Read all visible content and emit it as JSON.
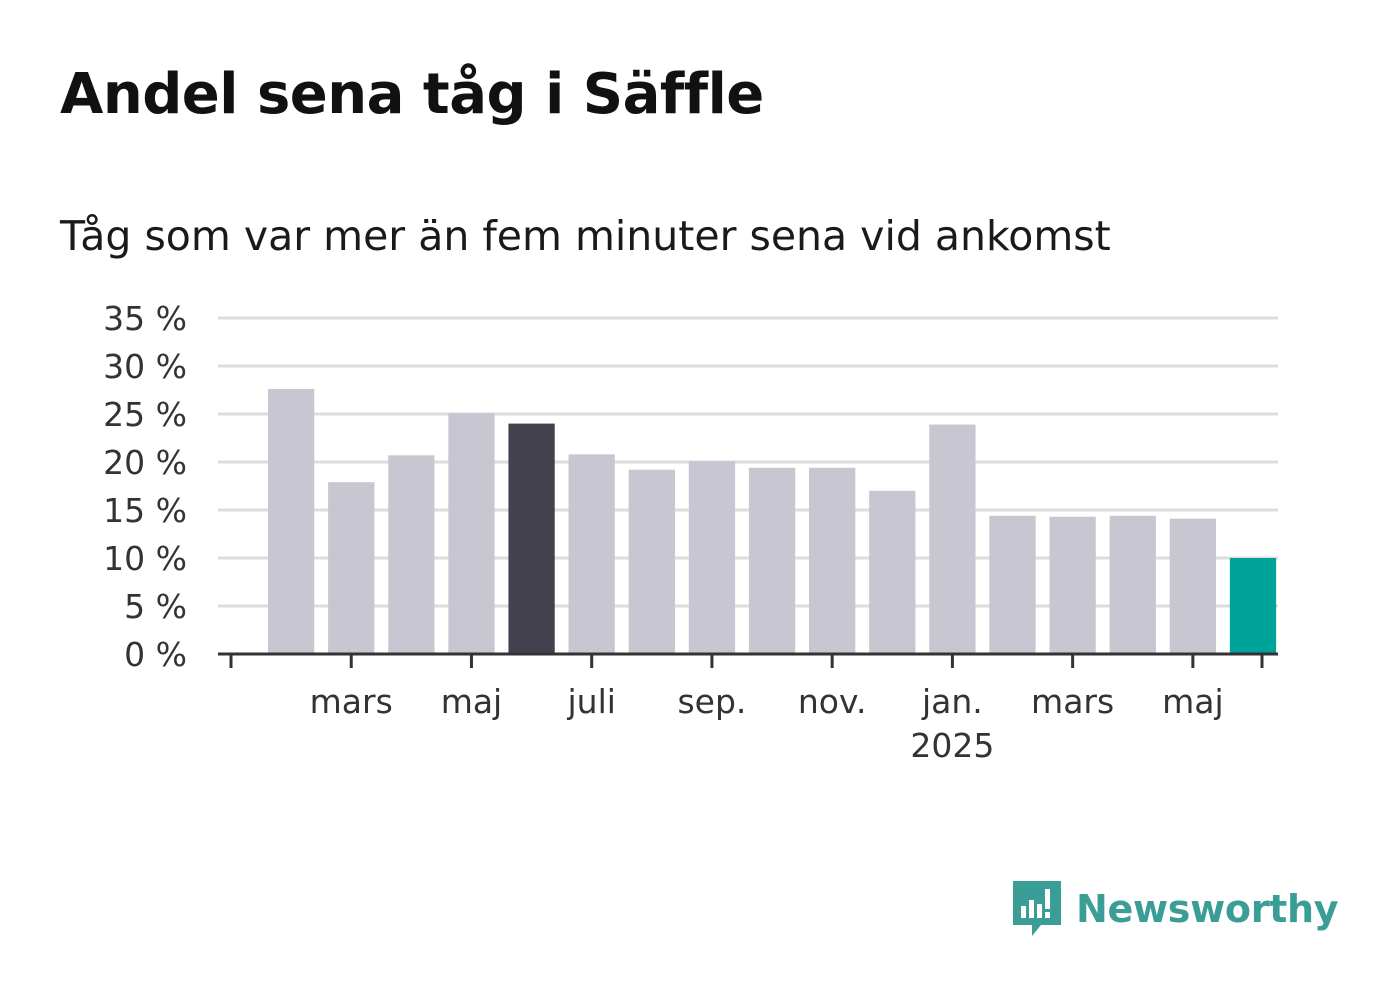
{
  "title": "Andel sena tåg i Säffle",
  "subtitle": "Tåg som var mer än fem minuter sena vid ankomst",
  "brand": {
    "name": "Newsworthy",
    "icon": "newsworthy-logo-icon"
  },
  "colors": {
    "bar": "#c8c7d1",
    "highlight": "#43414e",
    "latest": "#00a39a",
    "grid": "#dddddd",
    "axis": "#333333",
    "brand": "#3a9e96"
  },
  "chart_data": {
    "type": "bar",
    "title": "Andel sena tåg i Säffle",
    "subtitle": "Tåg som var mer än fem minuter sena vid ankomst",
    "xlabel": "",
    "ylabel": "",
    "ylim": [
      0,
      35
    ],
    "yticks": [
      0,
      5,
      10,
      15,
      20,
      25,
      30,
      35
    ],
    "ytick_labels": [
      "0 %",
      "5 %",
      "10 %",
      "15 %",
      "20 %",
      "25 %",
      "30 %",
      "35 %"
    ],
    "grid": true,
    "categories": [
      "2024-02",
      "2024-03",
      "2024-04",
      "2024-05",
      "2024-06",
      "2024-07",
      "2024-08",
      "2024-09",
      "2024-10",
      "2024-11",
      "2024-12",
      "2025-01",
      "2025-02",
      "2025-03",
      "2025-04",
      "2025-05",
      "2025-06"
    ],
    "values": [
      27.6,
      17.9,
      20.7,
      25.1,
      24.0,
      20.8,
      19.2,
      20.1,
      19.4,
      19.4,
      17.0,
      23.9,
      14.4,
      14.3,
      14.4,
      14.1,
      10.0
    ],
    "highlight_categories": [
      "2024-06"
    ],
    "latest_category": "2025-06",
    "x_tick_labels": [
      {
        "category": "2024-03",
        "label": "mars"
      },
      {
        "category": "2024-05",
        "label": "maj"
      },
      {
        "category": "2024-07",
        "label": "juli"
      },
      {
        "category": "2024-09",
        "label": "sep."
      },
      {
        "category": "2024-11",
        "label": "nov."
      },
      {
        "category": "2025-01",
        "label": "jan.",
        "sublabel": "2025"
      },
      {
        "category": "2025-03",
        "label": "mars"
      },
      {
        "category": "2025-05",
        "label": "maj"
      }
    ]
  }
}
